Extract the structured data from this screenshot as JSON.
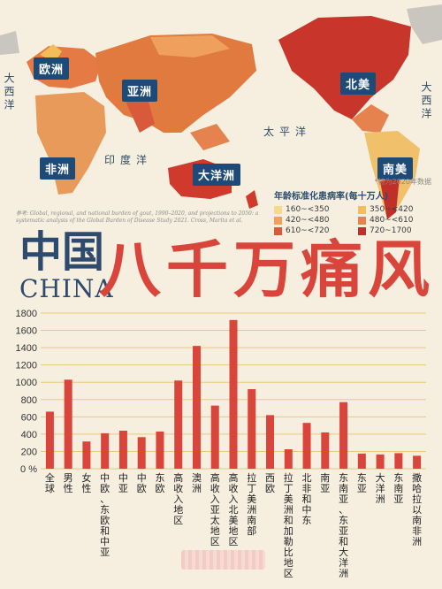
{
  "map": {
    "regions": [
      {
        "id": "europe",
        "label": "欧洲"
      },
      {
        "id": "asia",
        "label": "亚洲"
      },
      {
        "id": "africa",
        "label": "非洲"
      },
      {
        "id": "oceania",
        "label": "大洋洲"
      },
      {
        "id": "north_america",
        "label": "北美"
      },
      {
        "id": "south_america",
        "label": "南美"
      }
    ],
    "oceans": {
      "indian": "印度洋",
      "pacific": "太平洋",
      "atlantic_left": "大西洋",
      "atlantic_right": "大西洋"
    },
    "colors": {
      "land": "#f0c89a",
      "ocean": "#f6efe0",
      "europe": "#e57a45",
      "asia": "#e07a3e",
      "africa": "#e89a5a",
      "oceania": "#cf3a2c",
      "north_america": "#c7352b",
      "south_america": "#f0c06a",
      "grey": "#c9c6c0"
    }
  },
  "legend": {
    "note": "*特为2020年数据",
    "title": "年龄标准化患病率(每十万人)",
    "items": [
      {
        "label": "160~<350",
        "color": "#f6d98a"
      },
      {
        "label": "350~<420",
        "color": "#f2bd5a"
      },
      {
        "label": "420~<480",
        "color": "#eea05c"
      },
      {
        "label": "480~<610",
        "color": "#e6824d"
      },
      {
        "label": "610~<720",
        "color": "#d85a3a"
      },
      {
        "label": "720~1700",
        "color": "#c0302a"
      }
    ]
  },
  "reference": "参考: Global, regional, and national burden of gout, 1990–2020, and projections to 2050: a systematic analysis of the Global Burden of Disease Study 2021. Cross, Marita et al.",
  "heading": {
    "cn": "中国",
    "en": "CHINA",
    "big": "八千万痛风"
  },
  "chart_data": {
    "type": "bar",
    "color": "#d9453a",
    "ylim": [
      0,
      1800
    ],
    "yticks": [
      0,
      200,
      400,
      600,
      800,
      1000,
      1200,
      1400,
      1600,
      1800
    ],
    "ytick_labels": [
      "0",
      "200",
      "400",
      "600",
      "800",
      "1000",
      "1200",
      "1400",
      "1600",
      "1800"
    ],
    "ylabel": "%",
    "grid": true,
    "categories": [
      "全球",
      "男性",
      "女性",
      "中欧、东欧和中亚",
      "中亚",
      "中欧",
      "东欧",
      "高收入地区",
      "澳洲",
      "高收入亚太地区",
      "高收入北美地区",
      "拉丁美洲南部",
      "西欧",
      "拉丁美洲和加勒比地区",
      "北非和中东",
      "南亚",
      "东南亚、东亚和大洋洲",
      "东亚",
      "大洋洲",
      "东南亚",
      "撒哈拉以南非洲"
    ],
    "values": [
      660,
      1030,
      315,
      410,
      440,
      365,
      430,
      1020,
      1420,
      730,
      1720,
      920,
      620,
      225,
      530,
      420,
      770,
      175,
      165,
      180,
      150
    ]
  }
}
